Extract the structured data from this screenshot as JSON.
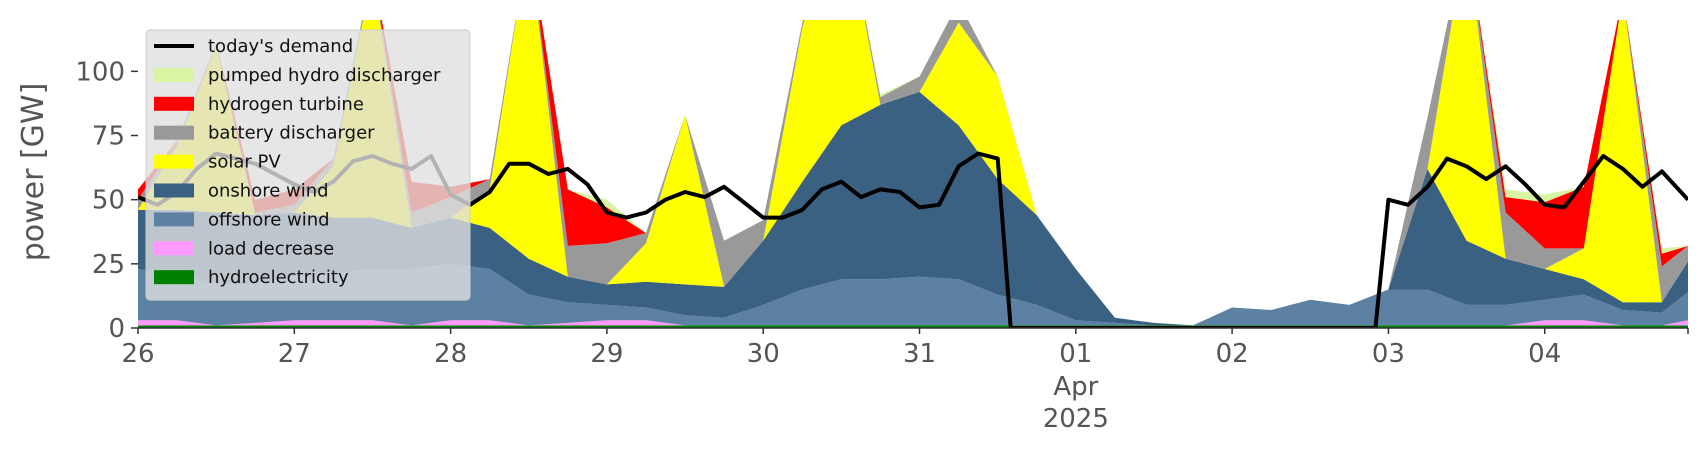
{
  "chart_data": {
    "type": "area",
    "ylabel": "power [GW]",
    "ylim": [
      0,
      120
    ],
    "xlim": [
      "2025-03-26T00:00",
      "2025-04-04T22:00"
    ],
    "yticks": [
      0,
      25,
      50,
      75,
      100
    ],
    "xticks": [
      {
        "date": "2025-03-26",
        "label": "26"
      },
      {
        "date": "2025-03-27",
        "label": "27"
      },
      {
        "date": "2025-03-28",
        "label": "28"
      },
      {
        "date": "2025-03-29",
        "label": "29"
      },
      {
        "date": "2025-03-30",
        "label": "30"
      },
      {
        "date": "2025-03-31",
        "label": "31"
      },
      {
        "date": "2025-04-01",
        "label": "01",
        "sublabels": [
          "Apr",
          "2025"
        ]
      },
      {
        "date": "2025-04-02",
        "label": "02"
      },
      {
        "date": "2025-04-03",
        "label": "03"
      },
      {
        "date": "2025-04-04",
        "label": "04"
      }
    ],
    "grid": false,
    "legend_position": "top-left",
    "legend": [
      {
        "name": "today's demand",
        "color": "#000000",
        "kind": "line"
      },
      {
        "name": "pumped hydro discharger",
        "color": "#d9f5a3",
        "kind": "patch"
      },
      {
        "name": "hydrogen turbine",
        "color": "#ff0000",
        "kind": "patch"
      },
      {
        "name": "battery discharger",
        "color": "#999999",
        "kind": "patch"
      },
      {
        "name": "solar PV",
        "color": "#ffff00",
        "kind": "patch"
      },
      {
        "name": "onshore wind",
        "color": "#3b6182",
        "kind": "patch"
      },
      {
        "name": "offshore wind",
        "color": "#5c81a3",
        "kind": "patch"
      },
      {
        "name": "load decrease",
        "color": "#ff99ff",
        "kind": "patch"
      },
      {
        "name": "hydroelectricity",
        "color": "#008000",
        "kind": "patch"
      }
    ],
    "x": [
      "2025-03-26T00:00",
      "2025-03-26T06:00",
      "2025-03-26T12:00",
      "2025-03-26T18:00",
      "2025-03-27T00:00",
      "2025-03-27T06:00",
      "2025-03-27T12:00",
      "2025-03-27T18:00",
      "2025-03-28T00:00",
      "2025-03-28T06:00",
      "2025-03-28T12:00",
      "2025-03-28T18:00",
      "2025-03-29T00:00",
      "2025-03-29T06:00",
      "2025-03-29T12:00",
      "2025-03-29T18:00",
      "2025-03-30T00:00",
      "2025-03-30T06:00",
      "2025-03-30T12:00",
      "2025-03-30T18:00",
      "2025-03-31T00:00",
      "2025-03-31T06:00",
      "2025-03-31T12:00",
      "2025-03-31T18:00",
      "2025-04-01T00:00",
      "2025-04-01T06:00",
      "2025-04-01T12:00",
      "2025-04-01T18:00",
      "2025-04-02T00:00",
      "2025-04-02T06:00",
      "2025-04-02T12:00",
      "2025-04-02T18:00",
      "2025-04-03T00:00",
      "2025-04-03T06:00",
      "2025-04-03T12:00",
      "2025-04-03T18:00",
      "2025-04-04T00:00",
      "2025-04-04T06:00",
      "2025-04-04T12:00",
      "2025-04-04T18:00",
      "2025-04-04T22:00"
    ],
    "series": [
      {
        "name": "hydroelectricity",
        "color": "#008000",
        "values": [
          1,
          1,
          1,
          1,
          1,
          1,
          1,
          1,
          1,
          1,
          1,
          1,
          1,
          1,
          1,
          1,
          1,
          1,
          1,
          1,
          1,
          1,
          1,
          1,
          1,
          1,
          1,
          1,
          1,
          1,
          1,
          1,
          1,
          1,
          1,
          1,
          1,
          1,
          1,
          1,
          1
        ]
      },
      {
        "name": "load decrease",
        "color": "#ff99ff",
        "values": [
          2,
          2,
          0,
          1,
          2,
          2,
          2,
          0,
          2,
          2,
          0,
          1,
          2,
          2,
          0,
          0,
          0,
          0,
          0,
          0,
          0,
          0,
          0,
          0,
          0,
          0,
          0,
          0,
          0,
          0,
          0,
          0,
          0,
          0,
          0,
          0,
          2,
          2,
          0,
          0,
          2
        ]
      },
      {
        "name": "offshore wind",
        "color": "#5c81a3",
        "values": [
          20,
          18,
          16,
          15,
          17,
          18,
          20,
          22,
          22,
          20,
          12,
          8,
          6,
          5,
          4,
          3,
          8,
          14,
          18,
          18,
          19,
          18,
          12,
          8,
          2,
          1,
          0,
          0,
          7,
          6,
          10,
          8,
          14,
          14,
          8,
          8,
          8,
          10,
          6,
          5,
          11
        ]
      },
      {
        "name": "onshore wind",
        "color": "#3b6182",
        "values": [
          23,
          25,
          28,
          27,
          25,
          22,
          20,
          16,
          18,
          16,
          14,
          10,
          8,
          10,
          12,
          12,
          25,
          42,
          60,
          68,
          72,
          60,
          45,
          35,
          20,
          2,
          1,
          0,
          0,
          0,
          0,
          0,
          0,
          47,
          25,
          18,
          12,
          6,
          3,
          4,
          12
        ]
      },
      {
        "name": "solar PV",
        "color": "#ffff00",
        "values": [
          0,
          25,
          65,
          0,
          0,
          20,
          95,
          0,
          0,
          15,
          125,
          0,
          0,
          15,
          66,
          0,
          0,
          60,
          90,
          0,
          0,
          40,
          40,
          0,
          0,
          0,
          0,
          0,
          0,
          0,
          0,
          0,
          0,
          0,
          120,
          0,
          0,
          12,
          120,
          0,
          0
        ]
      },
      {
        "name": "battery discharger",
        "color": "#999999",
        "values": [
          4,
          2,
          1,
          1,
          3,
          3,
          2,
          6,
          8,
          4,
          0,
          12,
          16,
          4,
          0,
          18,
          8,
          2,
          0,
          3,
          6,
          8,
          0,
          0,
          0,
          0,
          0,
          0,
          0,
          0,
          0,
          0,
          0,
          20,
          0,
          18,
          8,
          0,
          0,
          14,
          6
        ]
      },
      {
        "name": "hydrogen turbine",
        "color": "#ff0000",
        "values": [
          4,
          0,
          0,
          5,
          6,
          0,
          0,
          12,
          4,
          0,
          0,
          22,
          14,
          0,
          0,
          0,
          0,
          0,
          0,
          0,
          0,
          0,
          0,
          0,
          0,
          0,
          0,
          0,
          0,
          0,
          0,
          0,
          0,
          0,
          0,
          6,
          18,
          24,
          0,
          5,
          0
        ]
      },
      {
        "name": "pumped hydro discharger",
        "color": "#d9f5a3",
        "values": [
          0,
          0,
          0,
          0,
          0,
          0,
          0,
          0,
          0,
          0,
          0,
          0,
          3,
          0,
          0,
          0,
          0,
          0,
          1,
          1,
          0,
          0,
          0,
          0,
          0,
          0,
          0,
          0,
          0,
          0,
          0,
          0,
          0,
          0,
          0,
          3,
          3,
          0,
          0,
          2,
          0
        ]
      }
    ],
    "demand": {
      "name": "today's demand",
      "color": "#000000",
      "points": [
        [
          "2025-03-26T00:00",
          51
        ],
        [
          "2025-03-26T03:00",
          48
        ],
        [
          "2025-03-26T06:00",
          53
        ],
        [
          "2025-03-26T09:00",
          62
        ],
        [
          "2025-03-26T12:00",
          68
        ],
        [
          "2025-03-26T15:00",
          66
        ],
        [
          "2025-03-26T18:00",
          64
        ],
        [
          "2025-03-26T21:00",
          60
        ],
        [
          "2025-03-27T00:00",
          56
        ],
        [
          "2025-03-27T03:00",
          53
        ],
        [
          "2025-03-27T06:00",
          57
        ],
        [
          "2025-03-27T09:00",
          65
        ],
        [
          "2025-03-27T12:00",
          67
        ],
        [
          "2025-03-27T15:00",
          64
        ],
        [
          "2025-03-27T18:00",
          62
        ],
        [
          "2025-03-27T21:00",
          67
        ],
        [
          "2025-03-28T00:00",
          52
        ],
        [
          "2025-03-28T03:00",
          48
        ],
        [
          "2025-03-28T06:00",
          53
        ],
        [
          "2025-03-28T09:00",
          64
        ],
        [
          "2025-03-28T12:00",
          64
        ],
        [
          "2025-03-28T15:00",
          60
        ],
        [
          "2025-03-28T18:00",
          62
        ],
        [
          "2025-03-28T21:00",
          56
        ],
        [
          "2025-03-29T00:00",
          45
        ],
        [
          "2025-03-29T03:00",
          43
        ],
        [
          "2025-03-29T06:00",
          45
        ],
        [
          "2025-03-29T09:00",
          50
        ],
        [
          "2025-03-29T12:00",
          53
        ],
        [
          "2025-03-29T15:00",
          51
        ],
        [
          "2025-03-29T18:00",
          55
        ],
        [
          "2025-03-29T21:00",
          49
        ],
        [
          "2025-03-30T00:00",
          43
        ],
        [
          "2025-03-30T03:00",
          43
        ],
        [
          "2025-03-30T06:00",
          46
        ],
        [
          "2025-03-30T09:00",
          54
        ],
        [
          "2025-03-30T12:00",
          57
        ],
        [
          "2025-03-30T15:00",
          51
        ],
        [
          "2025-03-30T18:00",
          54
        ],
        [
          "2025-03-30T21:00",
          53
        ],
        [
          "2025-03-31T00:00",
          47
        ],
        [
          "2025-03-31T03:00",
          48
        ],
        [
          "2025-03-31T06:00",
          63
        ],
        [
          "2025-03-31T09:00",
          68
        ],
        [
          "2025-03-31T12:00",
          66
        ],
        [
          "2025-03-31T14:00",
          0
        ],
        [
          "2025-04-02T22:00",
          0
        ],
        [
          "2025-04-03T00:00",
          50
        ],
        [
          "2025-04-03T03:00",
          48
        ],
        [
          "2025-04-03T06:00",
          55
        ],
        [
          "2025-04-03T09:00",
          66
        ],
        [
          "2025-04-03T12:00",
          63
        ],
        [
          "2025-04-03T15:00",
          58
        ],
        [
          "2025-04-03T18:00",
          63
        ],
        [
          "2025-04-03T21:00",
          56
        ],
        [
          "2025-04-04T00:00",
          48
        ],
        [
          "2025-04-04T03:00",
          47
        ],
        [
          "2025-04-04T06:00",
          57
        ],
        [
          "2025-04-04T09:00",
          67
        ],
        [
          "2025-04-04T12:00",
          62
        ],
        [
          "2025-04-04T15:00",
          55
        ],
        [
          "2025-04-04T18:00",
          61
        ],
        [
          "2025-04-04T22:00",
          50
        ]
      ]
    }
  }
}
